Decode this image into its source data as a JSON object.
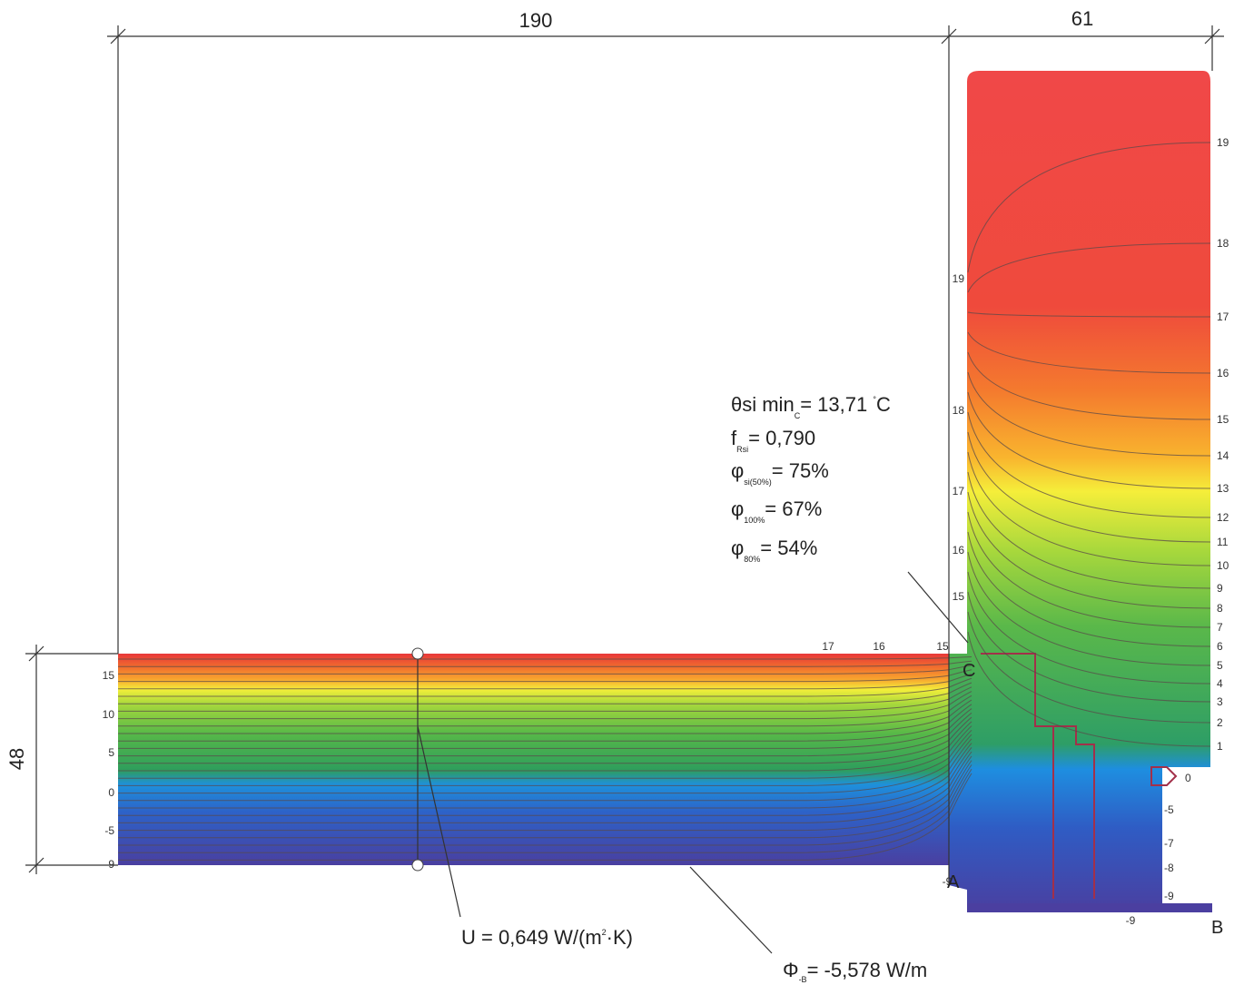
{
  "dimensions": {
    "width": "190",
    "depth": "61",
    "thickness": "48"
  },
  "isotherm_labels": {
    "right": [
      "19",
      "18",
      "17",
      "16",
      "15",
      "14",
      "13",
      "12",
      "11",
      "10",
      "9",
      "8",
      "7",
      "6",
      "5",
      "4",
      "3",
      "2",
      "1",
      "0",
      "-5",
      "-7",
      "-8",
      "-9"
    ],
    "wall_left": [
      "15",
      "10",
      "5",
      "0",
      "-5",
      "-9"
    ],
    "wall_top": [
      "17",
      "16",
      "15"
    ],
    "column_left": [
      "19",
      "18",
      "17",
      "16",
      "15"
    ],
    "bottom": [
      "-9",
      "-9"
    ]
  },
  "points": [
    "C",
    "A",
    "B"
  ],
  "results": {
    "theta": {
      "main": "θsi min",
      "index": "C",
      "rest": "= 13,71 ",
      "sup": "°",
      "unit": "C"
    },
    "f": {
      "main": "f",
      "index": "Rsi",
      "rest": "= 0,790"
    },
    "phi50": {
      "main": "φ",
      "index": "si(50%)",
      "rest": "= 75%"
    },
    "phi100": {
      "main": "φ",
      "index": "100%",
      "rest": "= 67%"
    },
    "phi80": {
      "main": "φ",
      "index": "80%",
      "rest": "= 54%"
    },
    "u": {
      "main": "U = 0,649 W/(m",
      "sup": "2",
      "rest": "·K)"
    },
    "psi": {
      "main": "Φ",
      "index": "-B",
      "rest": "= -5,578 W/m"
    }
  }
}
